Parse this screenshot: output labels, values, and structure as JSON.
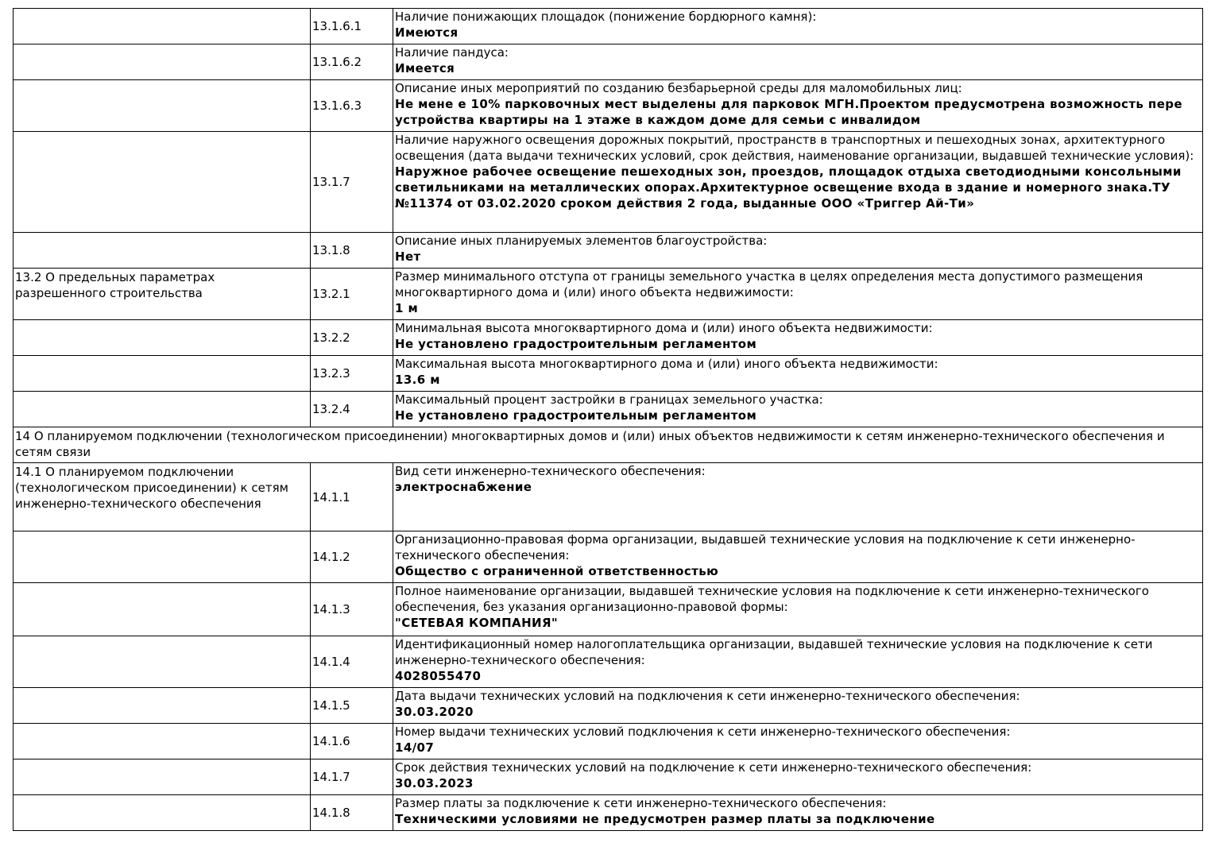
{
  "table": {
    "rows": [
      {
        "code": "13.1.6.1",
        "label": "Наличие понижающих площадок (понижение бордюрного камня):",
        "value": "Имеются"
      },
      {
        "code": "13.1.6.2",
        "label": "Наличие пандуса:",
        "value": "Имеется"
      },
      {
        "code": "13.1.6.3",
        "label": "Описание иных мероприятий по созданию безбарьерной среды для маломобильных лиц:",
        "value": "Не мене е 10% парковочных мест выделены для парковок МГН.Проектом предусмотрена возможность пере устройства квартиры на 1 этаже в каждом доме для семьи с инвалидом"
      },
      {
        "code": "13.1.7",
        "label": "Наличие наружного освещения дорожных покрытий, пространств в транспортных и пешеходных зонах, архитектурного освещения (дата выдачи технических условий, срок действия, наименование организации, выдавшей технические условия):",
        "value": "Наружное рабочее освещение пешеходных зон, проездов, площадок отдыха светодиодными консольными светильниками на металлических опорах.Архитектурное освещение входа в здание и номерного знака.ТУ №11374 от 03.02.2020 сроком действия 2 года, выданные ООО «Триггер Ай-Ти»"
      },
      {
        "code": "13.1.8",
        "label": "Описание иных планируемых элементов благоустройства:",
        "value": "Нет"
      },
      {
        "section": "13.2 О предельных параметрах разрешенного строительства",
        "code": "13.2.1",
        "label": "Размер минимального отступа от границы земельного участка в целях определения места допустимого размещения многоквартирного дома и (или) иного объекта недвижимости:",
        "value": "1 м"
      },
      {
        "code": "13.2.2",
        "label": "Минимальная высота многоквартирного дома и (или) иного объекта недвижимости:",
        "value": "Не установлено градостроительным регламентом"
      },
      {
        "code": "13.2.3",
        "label": "Максимальная высота многоквартирного дома и (или) иного объекта недвижимости:",
        "value": "13.6 м"
      },
      {
        "code": "13.2.4",
        "label": "Максимальный процент застройки в границах земельного участка:",
        "value": "Не установлено градостроительным регламентом"
      },
      {
        "heading": "14 О планируемом подключении (технологическом присоединении) многоквартирных домов и (или) иных объектов недвижимости к сетям инженерно-технического обеспечения и сетям связи"
      },
      {
        "section": "14.1 О планируемом подключении (технологическом присоединении) к сетям инженерно-технического обеспечения",
        "code": "14.1.1",
        "label": "Вид сети инженерно-технического обеспечения:",
        "value": "электроснабжение"
      },
      {
        "code": "14.1.2",
        "label": "Организационно-правовая форма организации, выдавшей технические условия на подключение к сети инженерно-технического обеспечения:",
        "value": "Общество с ограниченной ответственностью"
      },
      {
        "code": "14.1.3",
        "label": "Полное наименование организации, выдавшей технические условия на подключение к сети инженерно-технического обеспечения, без указания организационно-правовой формы:",
        "value": "\"СЕТЕВАЯ КОМПАНИЯ\""
      },
      {
        "code": "14.1.4",
        "label": "Идентификационный номер налогоплательщика организации, выдавшей технические условия на подключение к сети инженерно-технического обеспечения:",
        "value": "4028055470"
      },
      {
        "code": "14.1.5",
        "label": "Дата выдачи технических условий на подключения к сети инженерно-технического обеспечения:",
        "value": "30.03.2020"
      },
      {
        "code": "14.1.6",
        "label": "Номер выдачи технических условий подключения к сети инженерно-технического обеспечения:",
        "value": "14/07"
      },
      {
        "code": "14.1.7",
        "label": "Срок действия технических условий на подключение к сети инженерно-технического обеспечения:",
        "value": "30.03.2023"
      },
      {
        "code": "14.1.8",
        "label": "Размер платы за подключение к сети инженерно-технического обеспечения:",
        "value": "Техническими условиями не предусмотрен размер платы за подключение"
      }
    ]
  }
}
